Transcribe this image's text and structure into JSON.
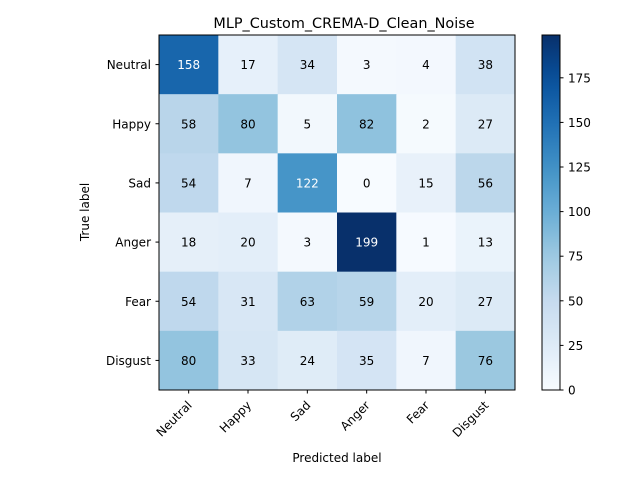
{
  "chart_data": {
    "type": "heatmap",
    "title": "MLP_Custom_CREMA-D_Clean_Noise",
    "xlabel": "Predicted label",
    "ylabel": "True label",
    "x_categories": [
      "Neutral",
      "Happy",
      "Sad",
      "Anger",
      "Fear",
      "Disgust"
    ],
    "y_categories": [
      "Neutral",
      "Happy",
      "Sad",
      "Anger",
      "Fear",
      "Disgust"
    ],
    "values": [
      [
        158,
        17,
        34,
        3,
        4,
        38
      ],
      [
        58,
        80,
        5,
        82,
        2,
        27
      ],
      [
        54,
        7,
        122,
        0,
        15,
        56
      ],
      [
        18,
        20,
        3,
        199,
        1,
        13
      ],
      [
        54,
        31,
        63,
        59,
        20,
        27
      ],
      [
        80,
        33,
        24,
        35,
        7,
        76
      ]
    ],
    "colormap": "Blues",
    "colorbar": {
      "range": [
        0,
        199
      ],
      "ticks": [
        0,
        25,
        50,
        75,
        100,
        125,
        150,
        175
      ]
    },
    "text_threshold": 99.5,
    "colors": {
      "text_dark": "#000000",
      "text_light": "#ffffff"
    }
  }
}
